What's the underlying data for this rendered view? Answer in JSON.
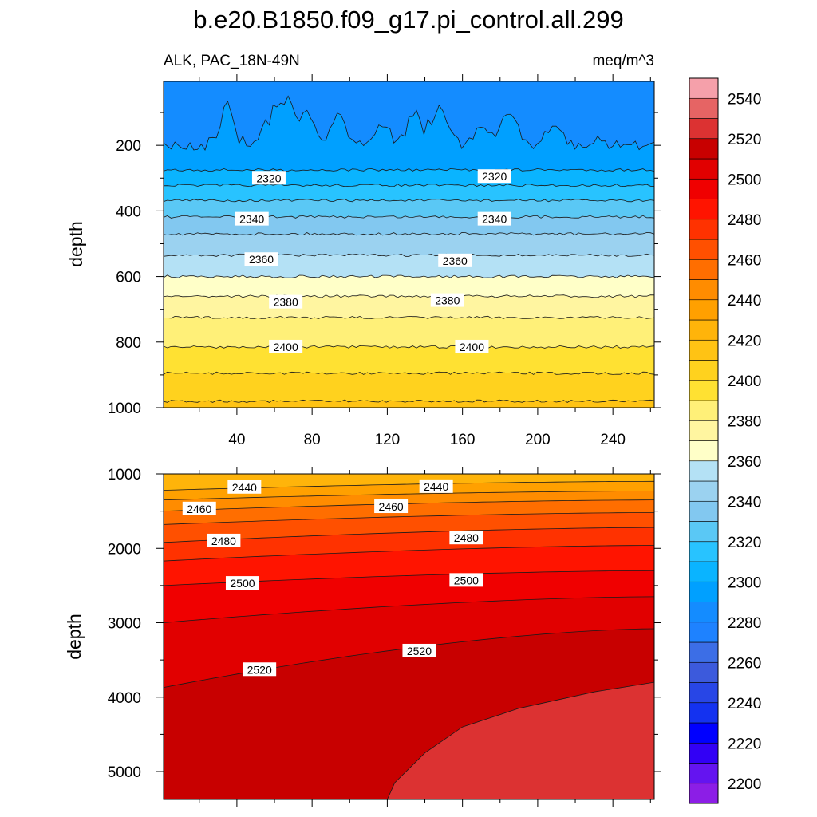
{
  "chart_data": {
    "type": "contour",
    "title": "b.e20.B1850.f09_g17.pi_control.all.299",
    "variable": "ALK, PAC_18N-49N",
    "units": "meq/m^3",
    "colorbar": {
      "levels": [
        2200,
        2210,
        2220,
        2230,
        2240,
        2250,
        2260,
        2270,
        2280,
        2290,
        2300,
        2310,
        2320,
        2330,
        2340,
        2350,
        2360,
        2370,
        2380,
        2390,
        2400,
        2410,
        2420,
        2430,
        2440,
        2450,
        2460,
        2470,
        2480,
        2490,
        2500,
        2510,
        2520,
        2530,
        2540,
        2550
      ],
      "tick_labels": [
        "2200",
        "2220",
        "2240",
        "2260",
        "2280",
        "2300",
        "2320",
        "2340",
        "2360",
        "2380",
        "2400",
        "2420",
        "2440",
        "2460",
        "2480",
        "2500",
        "2520",
        "2540"
      ],
      "colors": [
        "#8c1ee6",
        "#6414f0",
        "#3200f5",
        "#0000ff",
        "#1432f0",
        "#2846e6",
        "#3c5adc",
        "#3c6ee6",
        "#1e82ff",
        "#148cff",
        "#00a0ff",
        "#0ab4ff",
        "#28c3ff",
        "#5ac8f5",
        "#82c8f0",
        "#9bd2f0",
        "#b4e1f5",
        "#ffffc8",
        "#fff5a0",
        "#fff078",
        "#ffe132",
        "#ffd21e",
        "#ffc314",
        "#ffb40a",
        "#ffa000",
        "#ff8c00",
        "#ff6e00",
        "#ff5000",
        "#ff3200",
        "#ff1400",
        "#f00000",
        "#e10000",
        "#c80000",
        "#dc3232",
        "#e66464",
        "#f5a0aa"
      ]
    },
    "panels": [
      {
        "name": "upper",
        "x_ticks": [
          "40",
          "80",
          "120",
          "160",
          "200",
          "240"
        ],
        "x_tick_values": [
          40,
          80,
          120,
          160,
          200,
          240
        ],
        "xlim": [
          1,
          262
        ],
        "y_ticks": [
          "200",
          "400",
          "600",
          "800",
          "1000"
        ],
        "y_tick_values": [
          200,
          400,
          600,
          800,
          1000
        ],
        "ylim": [
          5,
          1000
        ],
        "ylabel": "depth",
        "contour_lines": [
          {
            "level": 2300,
            "depth_mean": 200,
            "rough": true
          },
          {
            "level": 2310,
            "depth_mean": 275
          },
          {
            "level": 2320,
            "depth_mean": 322
          },
          {
            "level": 2330,
            "depth_mean": 368
          },
          {
            "level": 2340,
            "depth_mean": 418
          },
          {
            "level": 2350,
            "depth_mean": 470
          },
          {
            "level": 2360,
            "depth_mean": 535
          },
          {
            "level": 2370,
            "depth_mean": 600
          },
          {
            "level": 2380,
            "depth_mean": 660
          },
          {
            "level": 2390,
            "depth_mean": 725
          },
          {
            "level": 2400,
            "depth_mean": 815
          },
          {
            "level": 2410,
            "depth_mean": 895
          },
          {
            "level": 2420,
            "depth_mean": 980
          }
        ],
        "labels": [
          {
            "text": "2320",
            "x": 57,
            "depth": 300
          },
          {
            "text": "2320",
            "x": 177,
            "depth": 295
          },
          {
            "text": "2340",
            "x": 48,
            "depth": 425
          },
          {
            "text": "2340",
            "x": 177,
            "depth": 425
          },
          {
            "text": "2360",
            "x": 53,
            "depth": 548
          },
          {
            "text": "2360",
            "x": 156,
            "depth": 552
          },
          {
            "text": "2380",
            "x": 66,
            "depth": 678
          },
          {
            "text": "2380",
            "x": 152,
            "depth": 673
          },
          {
            "text": "2400",
            "x": 66,
            "depth": 815
          },
          {
            "text": "2400",
            "x": 165,
            "depth": 815
          }
        ]
      },
      {
        "name": "lower",
        "x_tick_values": [
          40,
          80,
          120,
          160,
          200,
          240
        ],
        "xlim": [
          1,
          262
        ],
        "y_ticks": [
          "1000",
          "2000",
          "3000",
          "4000",
          "5000"
        ],
        "y_tick_values": [
          1000,
          2000,
          3000,
          4000,
          5000
        ],
        "ylim": [
          1000,
          5375
        ],
        "ylabel": "depth",
        "contour_lines": [
          {
            "level": 2440,
            "depth_left": 1220,
            "depth_right": 1100
          },
          {
            "level": 2450,
            "depth_left": 1350,
            "depth_right": 1230
          },
          {
            "level": 2460,
            "depth_left": 1500,
            "depth_right": 1350
          },
          {
            "level": 2470,
            "depth_left": 1680,
            "depth_right": 1520
          },
          {
            "level": 2480,
            "depth_left": 1920,
            "depth_right": 1720
          },
          {
            "level": 2490,
            "depth_left": 2170,
            "depth_right": 1960
          },
          {
            "level": 2500,
            "depth_left": 2500,
            "depth_right": 2300
          },
          {
            "level": 2510,
            "depth_left": 3000,
            "depth_right": 2650
          },
          {
            "level": 2520,
            "depth_left": 3870,
            "depth_right": 3080
          },
          {
            "level": 2530,
            "boundary": [
              [
                120,
                5375
              ],
              [
                124,
                5150
              ],
              [
                140,
                4750
              ],
              [
                160,
                4400
              ],
              [
                190,
                4150
              ],
              [
                230,
                3930
              ],
              [
                262,
                3800
              ]
            ]
          }
        ],
        "labels": [
          {
            "text": "2440",
            "x": 44,
            "depth": 1180
          },
          {
            "text": "2440",
            "x": 146,
            "depth": 1170
          },
          {
            "text": "2460",
            "x": 20,
            "depth": 1470
          },
          {
            "text": "2460",
            "x": 122,
            "depth": 1440
          },
          {
            "text": "2480",
            "x": 33,
            "depth": 1900
          },
          {
            "text": "2480",
            "x": 162,
            "depth": 1860
          },
          {
            "text": "2500",
            "x": 43,
            "depth": 2470
          },
          {
            "text": "2500",
            "x": 162,
            "depth": 2430
          },
          {
            "text": "2520",
            "x": 52,
            "depth": 3630
          },
          {
            "text": "2520",
            "x": 137,
            "depth": 3380
          }
        ]
      }
    ]
  }
}
